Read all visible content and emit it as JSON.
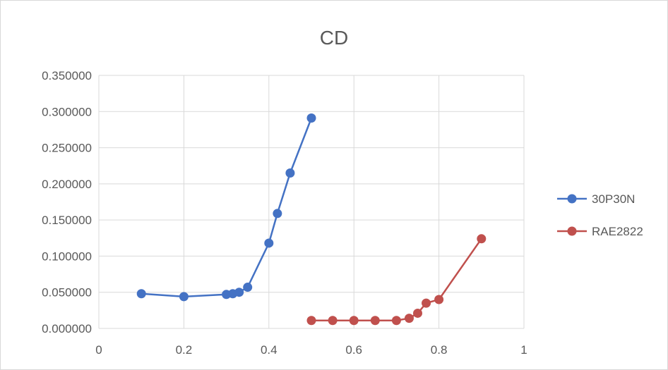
{
  "chart_data": {
    "type": "scatter",
    "title": "CD",
    "xlabel": "",
    "ylabel": "",
    "xlim": [
      0,
      1
    ],
    "ylim": [
      0,
      0.35
    ],
    "x_ticks": [
      "0",
      "0.2",
      "0.4",
      "0.6",
      "0.8",
      "1"
    ],
    "x_tick_values": [
      0,
      0.2,
      0.4,
      0.6,
      0.8,
      1
    ],
    "y_ticks": [
      "0.000000",
      "0.050000",
      "0.100000",
      "0.150000",
      "0.200000",
      "0.250000",
      "0.300000",
      "0.350000"
    ],
    "y_tick_values": [
      0,
      0.05,
      0.1,
      0.15,
      0.2,
      0.25,
      0.3,
      0.35
    ],
    "grid": true,
    "legend_position": "right",
    "series": [
      {
        "name": "30P30N",
        "color": "#4472c4",
        "x": [
          0.1,
          0.2,
          0.3,
          0.315,
          0.33,
          0.35,
          0.4,
          0.42,
          0.45,
          0.5
        ],
        "y": [
          0.048,
          0.044,
          0.047,
          0.048,
          0.05,
          0.057,
          0.118,
          0.159,
          0.215,
          0.291
        ]
      },
      {
        "name": "RAE2822",
        "color": "#c0504d",
        "x": [
          0.5,
          0.55,
          0.6,
          0.65,
          0.7,
          0.73,
          0.75,
          0.77,
          0.8,
          0.9
        ],
        "y": [
          0.011,
          0.011,
          0.011,
          0.011,
          0.011,
          0.014,
          0.021,
          0.035,
          0.04,
          0.124
        ]
      }
    ]
  }
}
